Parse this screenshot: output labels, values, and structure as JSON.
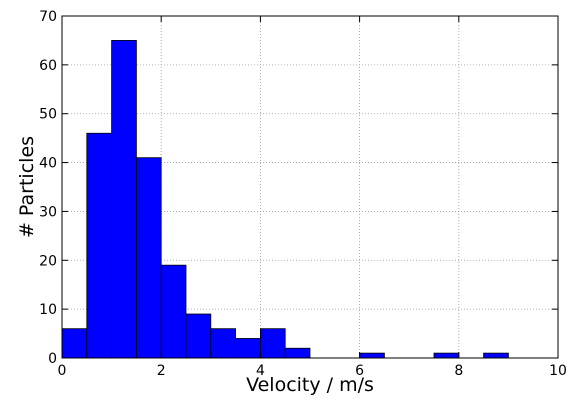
{
  "chart_data": {
    "type": "bar",
    "title": "",
    "xlabel": "Velocity / m/s",
    "ylabel": "# Particles",
    "xlim": [
      0,
      10
    ],
    "ylim": [
      0,
      70
    ],
    "bin_width": 0.5,
    "bin_starts": [
      0,
      0.5,
      1,
      1.5,
      2,
      2.5,
      3,
      3.5,
      4,
      4.5,
      5,
      5.5,
      6,
      6.5,
      7,
      7.5,
      8,
      8.5,
      9,
      9.5
    ],
    "values": [
      6,
      46,
      65,
      41,
      19,
      9,
      6,
      4,
      6,
      2,
      0,
      0,
      1,
      0,
      0,
      1,
      0,
      1,
      0,
      0
    ],
    "xticks": [
      "0",
      "2",
      "4",
      "6",
      "8",
      "10"
    ],
    "yticks": [
      "0",
      "10",
      "20",
      "30",
      "40",
      "50",
      "60",
      "70"
    ],
    "grid": true,
    "legend": "none",
    "bar_color": "#0000ff",
    "edge_color": "#000000"
  }
}
